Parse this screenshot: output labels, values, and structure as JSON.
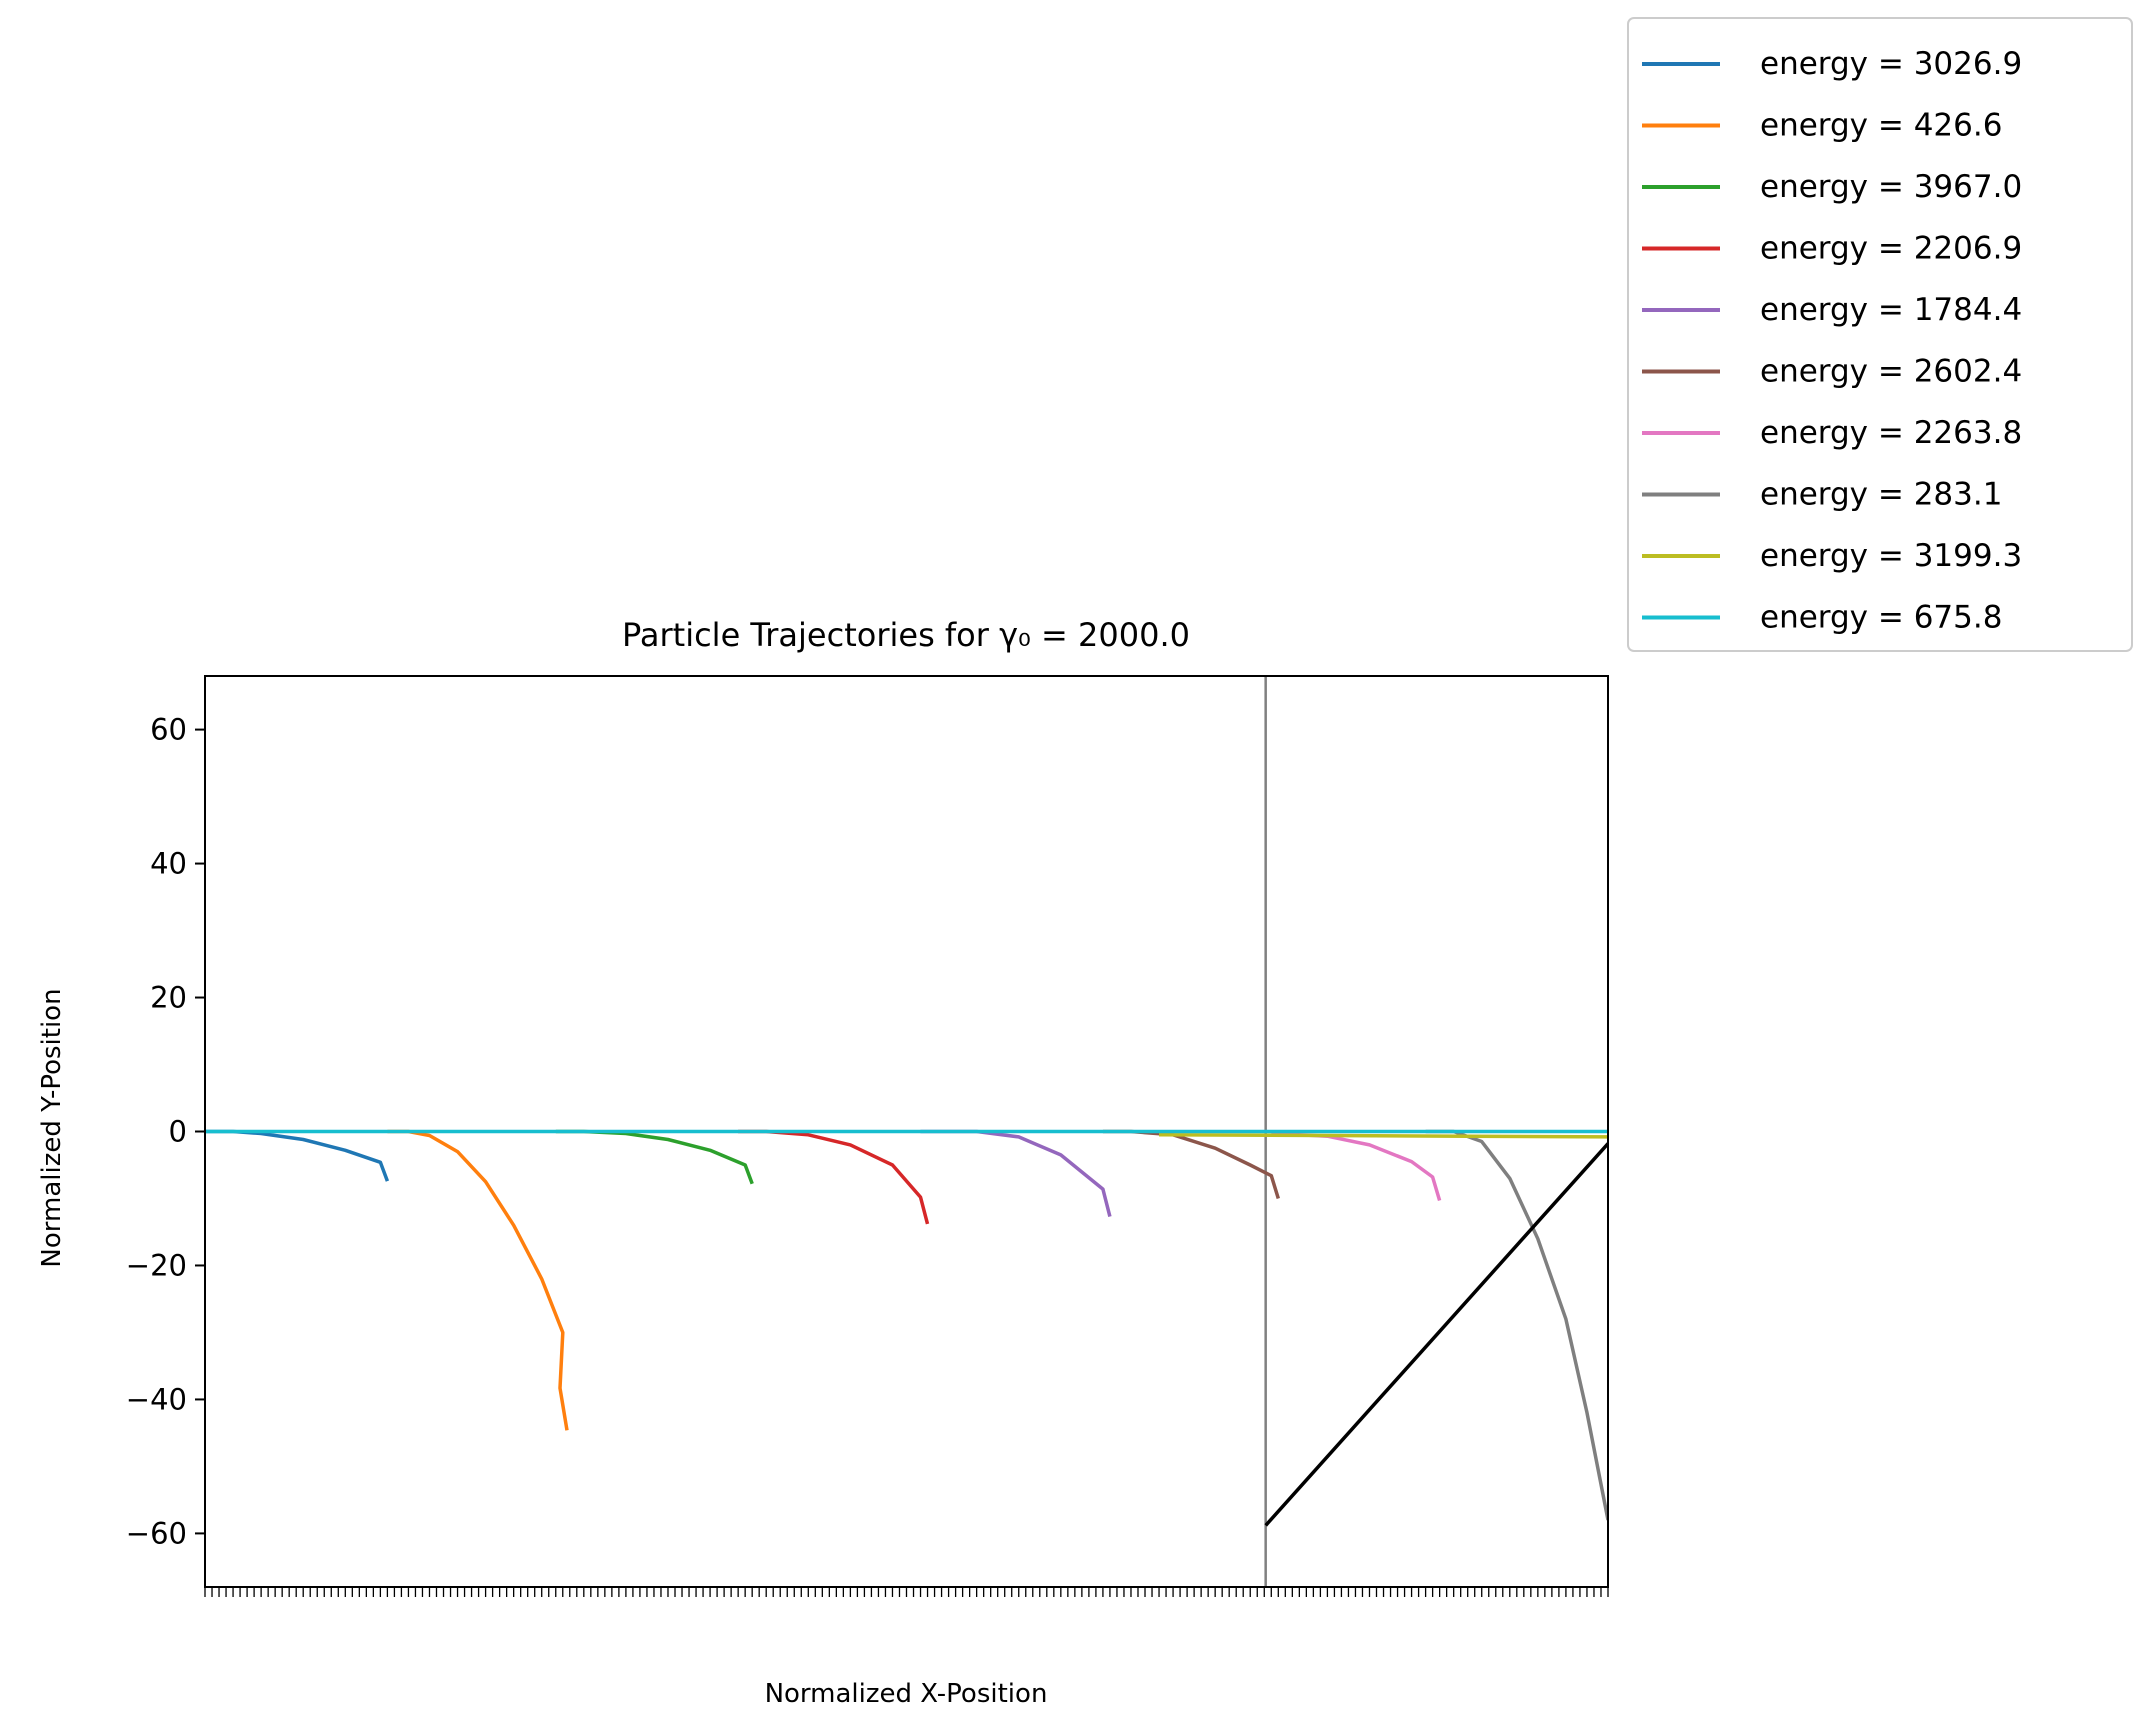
{
  "chart_data": {
    "type": "line",
    "title": "Particle Trajectories for γ₀ = 2000.0",
    "xlabel": "Normalized X-Position",
    "ylabel": "Normalized Y-Position",
    "x_range": [
      0,
      1
    ],
    "ylim": [
      -68,
      68
    ],
    "yticks": [
      60,
      40,
      20,
      0,
      -20,
      -40,
      -60
    ],
    "ytick_labels": [
      "60",
      "40",
      "20",
      "0",
      "−20",
      "−40",
      "−60"
    ],
    "xtick_count": 200,
    "grid": false,
    "legend_position": "outside-top-right",
    "vertical_line": {
      "x": 0.756,
      "color": "#808080"
    },
    "series": [
      {
        "name": "energy = 3026.9",
        "color": "#1f77b4",
        "points": [
          [
            0,
            0
          ],
          [
            0.02,
            0
          ],
          [
            0.04,
            -0.3
          ],
          [
            0.07,
            -1.2
          ],
          [
            0.1,
            -2.8
          ],
          [
            0.125,
            -4.6
          ],
          [
            0.13,
            -7.4
          ]
        ]
      },
      {
        "name": "energy = 426.6",
        "color": "#ff7f0e",
        "points": [
          [
            0.13,
            0
          ],
          [
            0.145,
            0
          ],
          [
            0.16,
            -0.6
          ],
          [
            0.18,
            -3
          ],
          [
            0.2,
            -7.5
          ],
          [
            0.22,
            -14
          ],
          [
            0.24,
            -22
          ],
          [
            0.255,
            -30
          ],
          [
            0.253,
            -38.3
          ],
          [
            0.258,
            -44.6
          ]
        ]
      },
      {
        "name": "energy = 3967.0",
        "color": "#2ca02c",
        "points": [
          [
            0.25,
            0
          ],
          [
            0.27,
            0
          ],
          [
            0.3,
            -0.3
          ],
          [
            0.33,
            -1.2
          ],
          [
            0.36,
            -2.8
          ],
          [
            0.385,
            -5
          ],
          [
            0.39,
            -7.8
          ]
        ]
      },
      {
        "name": "energy = 2206.9",
        "color": "#d62728",
        "points": [
          [
            0.38,
            0
          ],
          [
            0.4,
            0
          ],
          [
            0.43,
            -0.5
          ],
          [
            0.46,
            -2
          ],
          [
            0.49,
            -5
          ],
          [
            0.51,
            -9.8
          ],
          [
            0.515,
            -13.8
          ]
        ]
      },
      {
        "name": "energy = 1784.4",
        "color": "#9467bd",
        "points": [
          [
            0.51,
            0
          ],
          [
            0.55,
            0
          ],
          [
            0.58,
            -0.8
          ],
          [
            0.61,
            -3.5
          ],
          [
            0.64,
            -8.6
          ],
          [
            0.645,
            -12.7
          ]
        ]
      },
      {
        "name": "energy = 2602.4",
        "color": "#8c564b",
        "points": [
          [
            0.64,
            0
          ],
          [
            0.66,
            0
          ],
          [
            0.69,
            -0.5
          ],
          [
            0.72,
            -2.5
          ],
          [
            0.745,
            -5
          ],
          [
            0.76,
            -6.6
          ],
          [
            0.765,
            -10
          ]
        ]
      },
      {
        "name": "energy = 2263.8",
        "color": "#e377c2",
        "points": [
          [
            0.76,
            -0.5
          ],
          [
            0.78,
            -0.5
          ],
          [
            0.8,
            -0.7
          ],
          [
            0.83,
            -2
          ],
          [
            0.86,
            -4.5
          ],
          [
            0.875,
            -6.8
          ],
          [
            0.88,
            -10.3
          ]
        ]
      },
      {
        "name": "energy = 283.1",
        "color": "#7f7f7f",
        "points": [
          [
            0.87,
            0
          ],
          [
            0.89,
            0
          ],
          [
            0.91,
            -1.5
          ],
          [
            0.93,
            -7
          ],
          [
            0.95,
            -16
          ],
          [
            0.97,
            -28
          ],
          [
            0.985,
            -42
          ],
          [
            1.0,
            -58
          ]
        ]
      },
      {
        "name": "energy = 3199.3",
        "color": "#bcbd22",
        "points": [
          [
            0.68,
            -0.5
          ],
          [
            0.8,
            -0.6
          ],
          [
            0.9,
            -0.7
          ],
          [
            1.0,
            -0.8
          ]
        ]
      },
      {
        "name": "energy = 675.8",
        "color": "#17becf",
        "points": [
          [
            0,
            0
          ],
          [
            0.3,
            0
          ],
          [
            0.6,
            0
          ],
          [
            0.9,
            0
          ],
          [
            1.0,
            0
          ]
        ]
      }
    ],
    "black_line": {
      "color": "#000000",
      "points": [
        [
          0.756,
          -58.8
        ],
        [
          1.0,
          -1.8
        ]
      ]
    }
  }
}
